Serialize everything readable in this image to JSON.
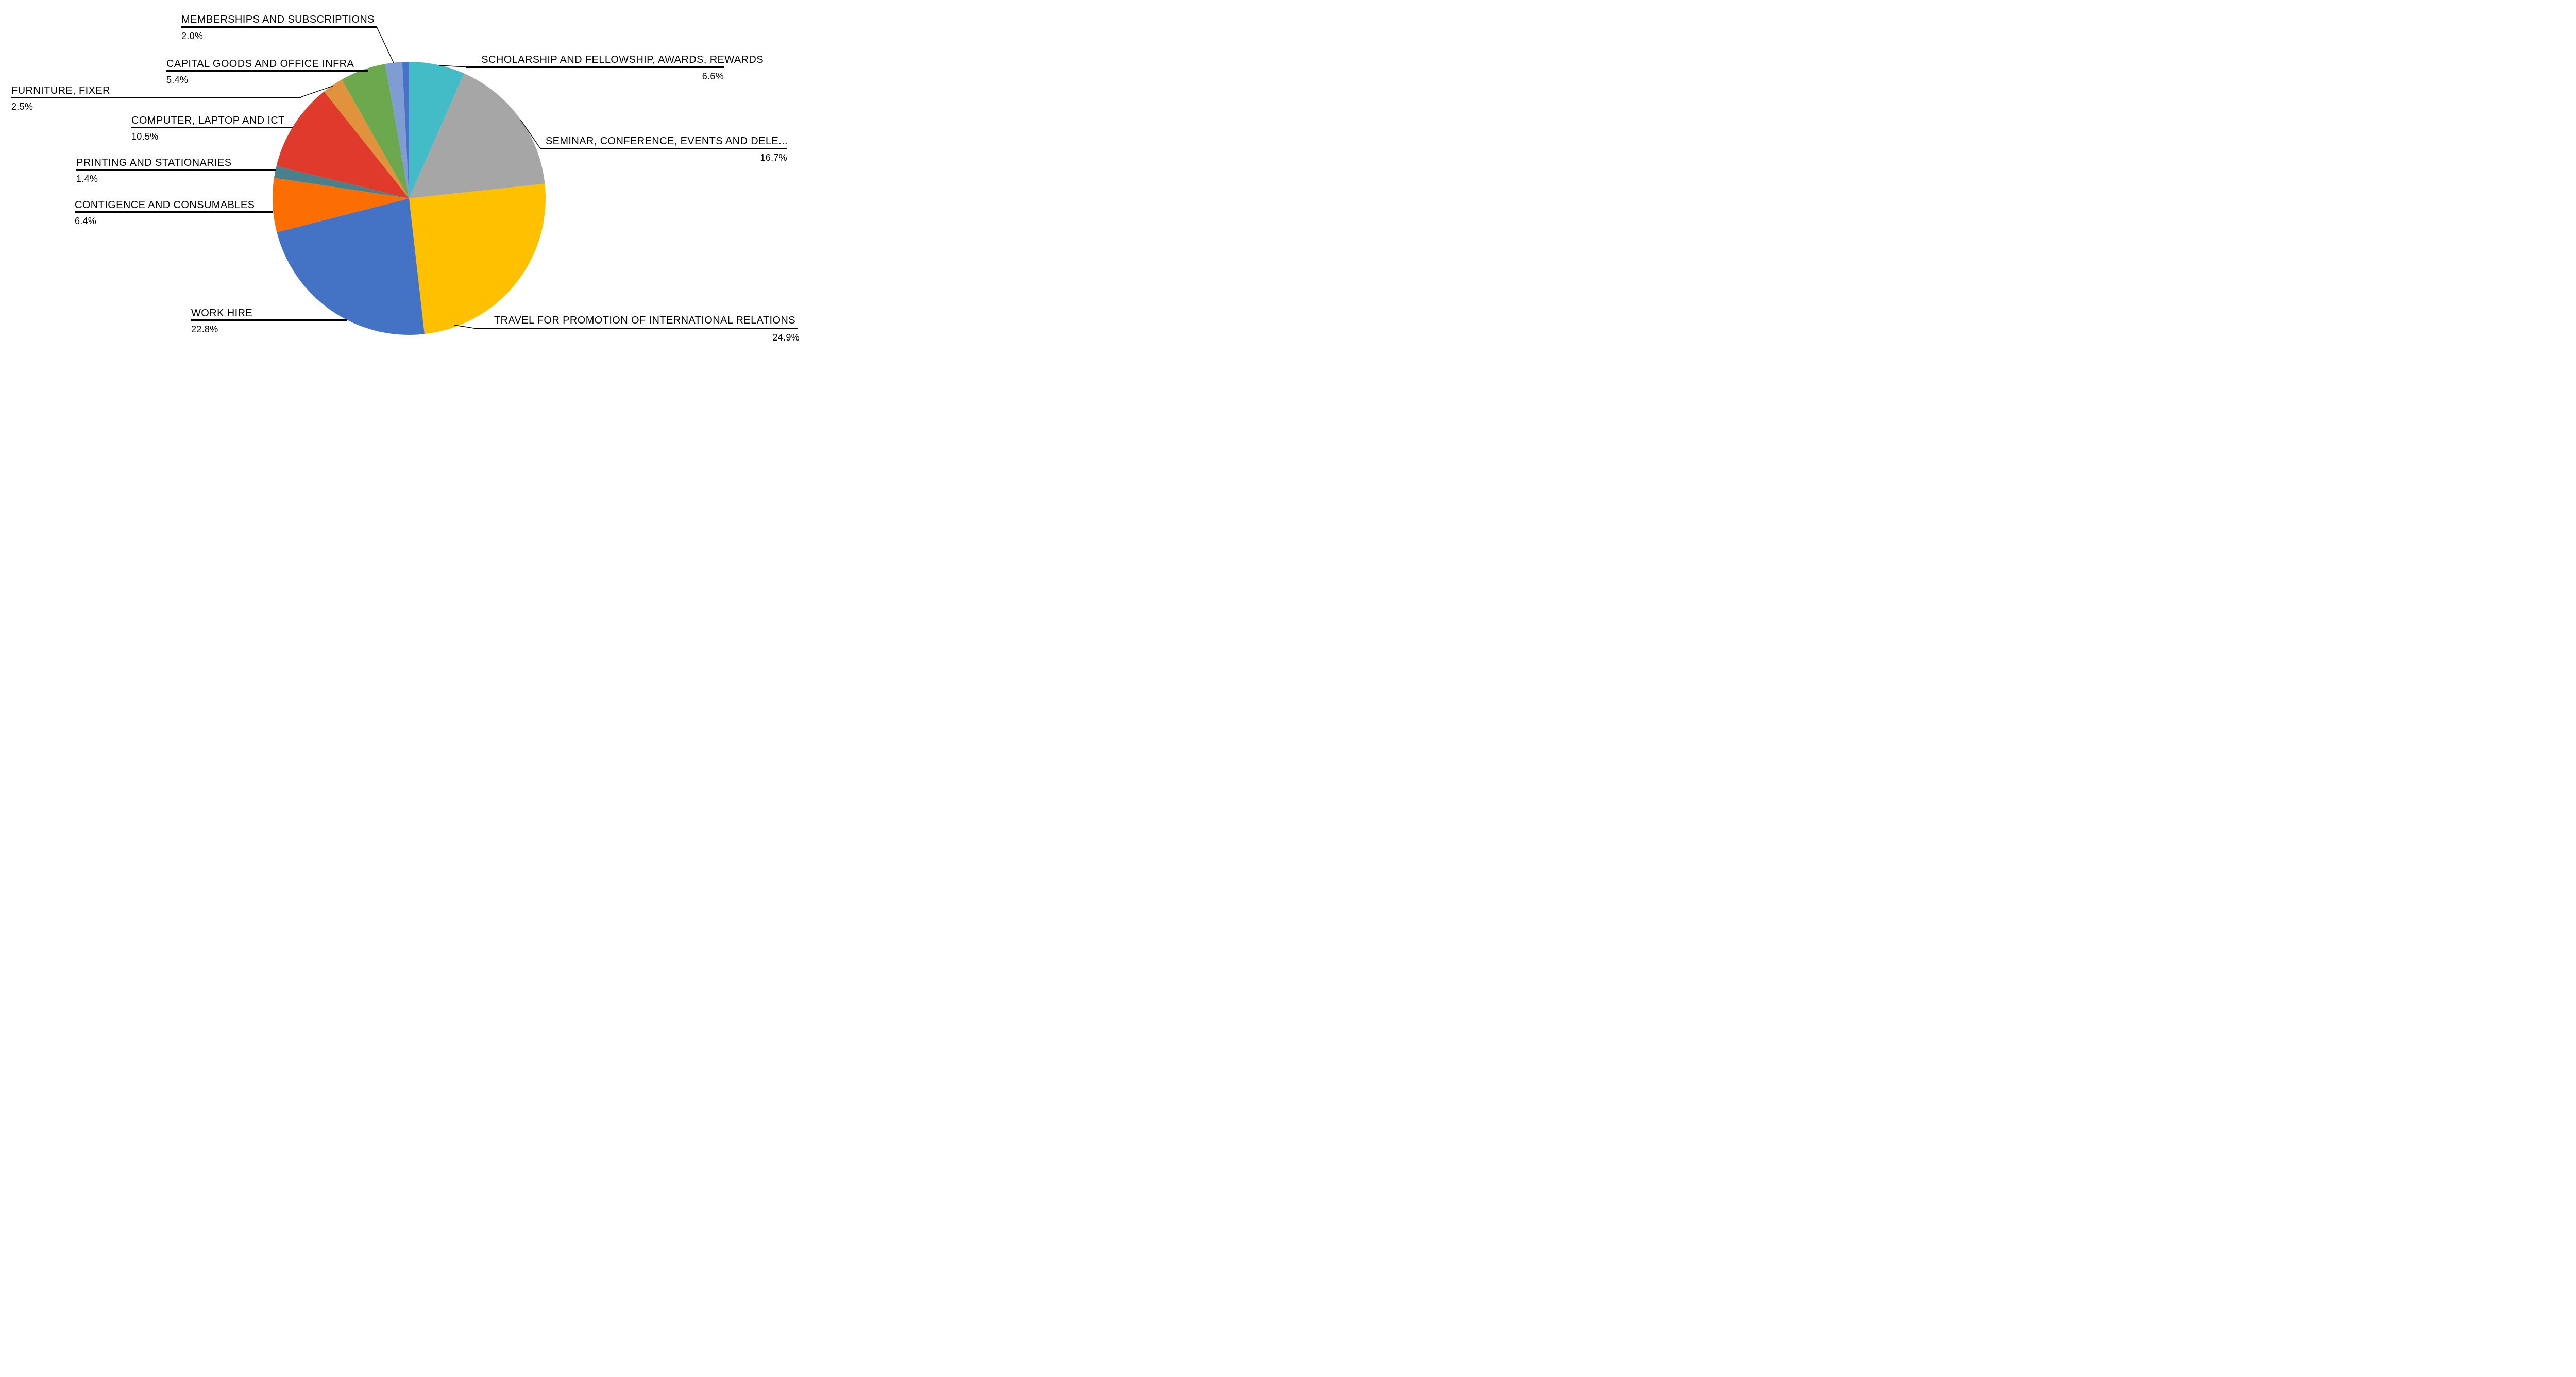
{
  "chart_data": {
    "type": "pie",
    "title": "",
    "legend": "none",
    "background": "#FFFFFF",
    "text_color": "#000000",
    "start_angle_deg": -90,
    "direction": "clockwise",
    "value_unit": "percent",
    "slices": [
      {
        "label": "SCHOLARSHIP AND FELLOWSHIP, AWARDS, REWARDS",
        "pct_label": "6.6%",
        "value": 6.6,
        "color": "#43BCC8"
      },
      {
        "label": "SEMINAR, CONFERENCE, EVENTS AND DELE...",
        "pct_label": "16.7%",
        "value": 16.7,
        "color": "#A6A6A6"
      },
      {
        "label": "TRAVEL FOR PROMOTION OF INTERNATIONAL RELATIONS",
        "pct_label": "24.9%",
        "value": 24.9,
        "color": "#FFC000"
      },
      {
        "label": "WORK HIRE",
        "pct_label": "22.8%",
        "value": 22.8,
        "color": "#4472C4"
      },
      {
        "label": "CONTIGENCE AND CONSUMABLES",
        "pct_label": "6.4%",
        "value": 6.4,
        "color": "#FC6E01"
      },
      {
        "label": "PRINTING AND STATIONARIES",
        "pct_label": "1.4%",
        "value": 1.4,
        "color": "#49808C"
      },
      {
        "label": "COMPUTER, LAPTOP AND ICT",
        "pct_label": "10.5%",
        "value": 10.5,
        "color": "#DF3A2C"
      },
      {
        "label": "FURNITURE, FIXER",
        "pct_label": "2.5%",
        "value": 2.5,
        "color": "#E0923D"
      },
      {
        "label": "CAPITAL GOODS AND OFFICE INFRA",
        "pct_label": "5.4%",
        "value": 5.4,
        "color": "#6CA84E"
      },
      {
        "label": "MEMBERSHIPS AND SUBSCRIPTIONS",
        "pct_label": "2.0%",
        "value": 2.0,
        "color": "#7F9DD3"
      },
      {
        "label": "",
        "pct_label": "",
        "value": 0.8,
        "color": "#4573C6"
      }
    ]
  }
}
